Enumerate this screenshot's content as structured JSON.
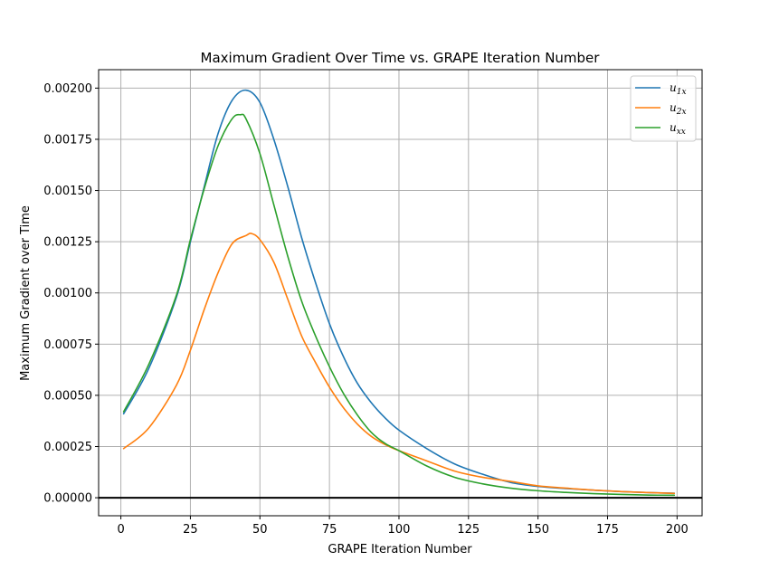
{
  "chart_data": {
    "type": "line",
    "title": "Maximum Gradient Over Time vs. GRAPE Iteration Number",
    "xlabel": "GRAPE Iteration Number",
    "ylabel": "Maximum Gradient over Time",
    "xlim": [
      -8,
      209
    ],
    "ylim": [
      -8.8e-05,
      0.00209
    ],
    "xticks": [
      0,
      25,
      50,
      75,
      100,
      125,
      150,
      175,
      200
    ],
    "xtick_labels": [
      "0",
      "25",
      "50",
      "75",
      "100",
      "125",
      "150",
      "175",
      "200"
    ],
    "yticks": [
      0,
      0.00025,
      0.0005,
      0.00075,
      0.001,
      0.00125,
      0.0015,
      0.00175,
      0.002
    ],
    "ytick_labels": [
      "0.00000",
      "0.00025",
      "0.00050",
      "0.00075",
      "0.00100",
      "0.00125",
      "0.00150",
      "0.00175",
      "0.00200"
    ],
    "grid": true,
    "hline": 0,
    "legend": {
      "position": "top-right"
    },
    "series": [
      {
        "name": "u",
        "subscript": "1x",
        "color": "#1f77b4",
        "x": [
          1,
          10,
          20,
          25,
          30,
          35,
          40,
          45,
          50,
          55,
          60,
          65,
          70,
          75,
          80,
          85,
          90,
          95,
          100,
          110,
          120,
          130,
          140,
          150,
          160,
          170,
          180,
          190,
          199
        ],
        "y": [
          0.00041,
          0.00063,
          0.00098,
          0.00125,
          0.00152,
          0.00178,
          0.00194,
          0.00199,
          0.00193,
          0.00175,
          0.00152,
          0.00127,
          0.00105,
          0.00085,
          0.00069,
          0.00056,
          0.000465,
          0.00039,
          0.00033,
          0.00024,
          0.000165,
          0.000115,
          7.5e-05,
          5.5e-05,
          4.5e-05,
          3.7e-05,
          3e-05,
          2.5e-05,
          2.2e-05
        ]
      },
      {
        "name": "u",
        "subscript": "2x",
        "color": "#ff7f0e",
        "x": [
          1,
          10,
          20,
          25,
          30,
          35,
          40,
          45,
          47,
          50,
          55,
          60,
          65,
          70,
          75,
          80,
          85,
          90,
          95,
          100,
          110,
          120,
          130,
          140,
          150,
          160,
          170,
          180,
          190,
          199
        ],
        "y": [
          0.00024,
          0.00034,
          0.00055,
          0.00072,
          0.00092,
          0.0011,
          0.00124,
          0.00128,
          0.00129,
          0.00126,
          0.00115,
          0.00097,
          0.00079,
          0.00066,
          0.00054,
          0.00044,
          0.00036,
          0.0003,
          0.00026,
          0.00023,
          0.00018,
          0.00013,
          0.0001,
          8e-05,
          5.8e-05,
          4.7e-05,
          3.7e-05,
          3e-05,
          2.5e-05,
          2.1e-05
        ]
      },
      {
        "name": "u",
        "subscript": "xx",
        "color": "#2ca02c",
        "x": [
          1,
          10,
          20,
          25,
          30,
          35,
          40,
          43,
          45,
          50,
          55,
          60,
          65,
          70,
          75,
          80,
          85,
          90,
          95,
          100,
          110,
          120,
          130,
          140,
          150,
          160,
          170,
          180,
          190,
          199
        ],
        "y": [
          0.00042,
          0.00065,
          0.00099,
          0.00126,
          0.00151,
          0.00172,
          0.00185,
          0.00187,
          0.00185,
          0.00168,
          0.00143,
          0.00118,
          0.00096,
          0.00079,
          0.00064,
          0.00051,
          0.000405,
          0.00032,
          0.000265,
          0.00023,
          0.000155,
          0.0001,
          6.8e-05,
          4.7e-05,
          3.4e-05,
          2.6e-05,
          2e-05,
          1.6e-05,
          1.3e-05,
          1.2e-05
        ]
      }
    ]
  }
}
